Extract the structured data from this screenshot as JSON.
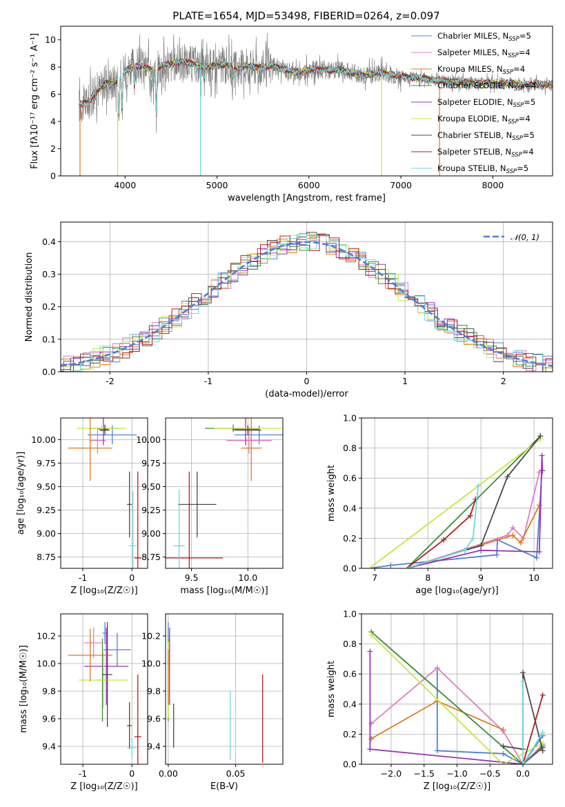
{
  "title": "PLATE=1654, MJD=53498, FIBERID=0264, z=0.097",
  "colors": {
    "blue": "#4f7fd6",
    "pink": "#e27cc0",
    "orange": "#de7a1e",
    "green": "#3b8a3b",
    "purple": "#9b30b8",
    "yellowgreen": "#c8e636",
    "darkgray": "#4a4a4a",
    "darkred": "#b51c1c",
    "cyan": "#72d8de",
    "data": "#808080"
  },
  "chart_data": [
    {
      "id": "spectrum",
      "type": "line",
      "xlabel": "wavelength [Angstrom, rest frame]",
      "ylabel": "Flux [fλ10⁻¹⁷ erg cm⁻² s⁻¹ A⁻¹]",
      "xlim": [
        3300,
        8650
      ],
      "ylim": [
        0,
        11
      ],
      "xticks": [
        4000,
        5000,
        6000,
        7000,
        8000
      ],
      "yticks": [
        0,
        2,
        4,
        6,
        8,
        10
      ],
      "legend_position": "top-right",
      "legend": [
        {
          "label": "Chabrier MILES, N",
          "sub": "SSP",
          "tail": "=5",
          "color": "blue"
        },
        {
          "label": "Salpeter MILES, N",
          "sub": "SSP",
          "tail": "=4",
          "color": "pink"
        },
        {
          "label": "Kroupa MILES, N",
          "sub": "SSP",
          "tail": "=4",
          "color": "orange"
        },
        {
          "label": "Chabrier ELODIE, N",
          "sub": "SSP",
          "tail": "=4",
          "color": "green"
        },
        {
          "label": "Salpeter ELODIE, N",
          "sub": "SSP",
          "tail": "=5",
          "color": "purple"
        },
        {
          "label": "Kroupa ELODIE, N",
          "sub": "SSP",
          "tail": "=4",
          "color": "yellowgreen"
        },
        {
          "label": "Chabrier STELIB, N",
          "sub": "SSP",
          "tail": "=5",
          "color": "darkgray"
        },
        {
          "label": "Salpeter STELIB, N",
          "sub": "SSP",
          "tail": "=4",
          "color": "darkred"
        },
        {
          "label": "Kroupa STELIB, N",
          "sub": "SSP",
          "tail": "=5",
          "color": "cyan"
        }
      ],
      "continuum": [
        [
          3500,
          5.2
        ],
        [
          3600,
          5.4
        ],
        [
          3700,
          6.3
        ],
        [
          3800,
          6.8
        ],
        [
          3900,
          7.0
        ],
        [
          4000,
          7.7
        ],
        [
          4100,
          8.1
        ],
        [
          4200,
          8.0
        ],
        [
          4300,
          7.8
        ],
        [
          4400,
          8.1
        ],
        [
          4500,
          8.2
        ],
        [
          4600,
          8.4
        ],
        [
          4700,
          8.3
        ],
        [
          4800,
          8.1
        ],
        [
          4900,
          8.0
        ],
        [
          5000,
          8.1
        ],
        [
          5100,
          8.2
        ],
        [
          5200,
          7.8
        ],
        [
          5300,
          8.1
        ],
        [
          5400,
          8.0
        ],
        [
          5500,
          8.0
        ],
        [
          5600,
          8.0
        ],
        [
          5700,
          7.9
        ],
        [
          5800,
          7.7
        ],
        [
          5900,
          7.6
        ],
        [
          6000,
          7.8
        ],
        [
          6200,
          7.8
        ],
        [
          6400,
          7.7
        ],
        [
          6600,
          7.4
        ],
        [
          6800,
          7.6
        ],
        [
          7000,
          7.3
        ],
        [
          7200,
          7.2
        ],
        [
          7400,
          7.0
        ],
        [
          7600,
          6.9
        ],
        [
          7800,
          6.8
        ],
        [
          8000,
          6.8
        ],
        [
          8200,
          6.8
        ],
        [
          8400,
          6.7
        ],
        [
          8600,
          6.7
        ]
      ],
      "absorption_lines": [
        [
          3933,
          4.3
        ],
        [
          3968,
          4.8
        ],
        [
          4102,
          6.6
        ],
        [
          4300,
          6.9
        ],
        [
          4340,
          4.4
        ],
        [
          4861,
          7.0
        ],
        [
          5175,
          7.2
        ],
        [
          5893,
          7.1
        ]
      ],
      "dropouts": [
        [
          3510,
          "orange"
        ],
        [
          3920,
          "yellowgreen"
        ],
        [
          4820,
          "cyan"
        ],
        [
          6790,
          "yellowgreen"
        ],
        [
          7420,
          "orange"
        ]
      ]
    },
    {
      "id": "residuals",
      "type": "histogram",
      "xlabel": "(data-model)/error",
      "ylabel": "Normed distribution",
      "xlim": [
        -2.5,
        2.5
      ],
      "ylim": [
        0,
        0.46
      ],
      "xticks": [
        -2,
        -1,
        0,
        1,
        2
      ],
      "yticks": [
        0.0,
        0.1,
        0.2,
        0.3,
        0.4
      ],
      "bin_width": 0.1,
      "reference": {
        "label": "𝒩(0, 1)",
        "mean": 0,
        "sigma": 1,
        "color": "blue",
        "style": "dashed"
      },
      "legend_position": "top-right"
    },
    {
      "id": "age_vs_Z",
      "type": "scatter",
      "xlabel": "Z [log₁₀(Z/Z☉)]",
      "ylabel": "age  [log₁₀(age/yr)]",
      "xlim": [
        -1.45,
        0.32
      ],
      "ylim": [
        8.63,
        10.23
      ],
      "xticks": [
        -1,
        0
      ],
      "yticks": [
        8.75,
        9.0,
        9.25,
        9.5,
        9.75,
        10.0
      ],
      "points": [
        {
          "x": -0.55,
          "y": 10.12,
          "xerr": 0.28,
          "yerr": 0.04,
          "color": "green"
        },
        {
          "x": -0.4,
          "y": 10.05,
          "xerr": 0.5,
          "yerr": 0.1,
          "color": "blue"
        },
        {
          "x": -0.7,
          "y": 9.99,
          "xerr": 0.17,
          "yerr": 0.14,
          "color": "pink"
        },
        {
          "x": -0.58,
          "y": 10.11,
          "xerr": 0.1,
          "yerr": 0.17,
          "color": "purple"
        },
        {
          "x": -0.62,
          "y": 10.12,
          "xerr": 0.5,
          "yerr": 0.04,
          "color": "yellowgreen"
        },
        {
          "x": -0.85,
          "y": 9.91,
          "xerr": 0.45,
          "yerr": 0.35,
          "color": "orange"
        },
        {
          "x": -0.55,
          "y": 10.1,
          "xerr": 0.1,
          "yerr": 0.05,
          "color": "darkgray"
        },
        {
          "x": -0.05,
          "y": 9.31,
          "xerr": 0.05,
          "yerr": 0.35,
          "color": "darkgray"
        },
        {
          "x": 0.12,
          "y": 8.74,
          "xerr": 0.07,
          "yerr": 0.92,
          "color": "darkred"
        },
        {
          "x": 0.02,
          "y": 8.87,
          "xerr": 0.08,
          "yerr": 0.58,
          "color": "cyan"
        }
      ]
    },
    {
      "id": "age_vs_mass",
      "type": "scatter",
      "xlabel": "mass [log₁₀(M/M☉)]",
      "ylabel": "",
      "xlim": [
        9.27,
        10.31
      ],
      "ylim": [
        8.63,
        10.23
      ],
      "xticks": [
        9.5,
        10.0
      ],
      "yticks": [
        8.75,
        9.0,
        9.25,
        9.5,
        9.75,
        10.0
      ],
      "points": [
        {
          "x": 9.87,
          "y": 10.12,
          "xerr": 0.25,
          "yerr": 0.04,
          "color": "green"
        },
        {
          "x": 10.1,
          "y": 10.05,
          "xerr": 0.22,
          "yerr": 0.1,
          "color": "blue"
        },
        {
          "x": 10.01,
          "y": 9.99,
          "xerr": 0.2,
          "yerr": 0.14,
          "color": "pink"
        },
        {
          "x": 9.98,
          "y": 10.11,
          "xerr": 0.12,
          "yerr": 0.17,
          "color": "purple"
        },
        {
          "x": 10.0,
          "y": 10.12,
          "xerr": 0.3,
          "yerr": 0.04,
          "color": "yellowgreen"
        },
        {
          "x": 10.03,
          "y": 9.91,
          "xerr": 0.09,
          "yerr": 0.35,
          "color": "orange"
        },
        {
          "x": 10.0,
          "y": 10.1,
          "xerr": 0.12,
          "yerr": 0.05,
          "color": "darkgray"
        },
        {
          "x": 9.55,
          "y": 9.31,
          "xerr": 0.17,
          "yerr": 0.35,
          "color": "darkgray"
        },
        {
          "x": 9.48,
          "y": 8.74,
          "xerr": 0.3,
          "yerr": 0.92,
          "color": "darkred"
        },
        {
          "x": 9.39,
          "y": 8.87,
          "xerr": 0.05,
          "yerr": 0.6,
          "color": "cyan"
        }
      ]
    },
    {
      "id": "mass_weight_vs_age",
      "type": "line",
      "xlabel": "age  [log₁₀(age/yr)]",
      "ylabel": "mass weight",
      "xlim": [
        6.75,
        10.35
      ],
      "ylim": [
        0,
        1.0
      ],
      "xticks": [
        7,
        8,
        9,
        10
      ],
      "yticks": [
        0.0,
        0.2,
        0.4,
        0.6,
        0.8,
        1.0
      ],
      "series": [
        {
          "color": "blue",
          "x": [
            6.9,
            7.3,
            9.3,
            9.31,
            10.05,
            10.15
          ],
          "y": [
            0.0,
            0.02,
            0.09,
            0.19,
            0.07,
            0.65
          ]
        },
        {
          "color": "pink",
          "x": [
            7.6,
            9.5,
            9.6,
            9.8,
            10.1
          ],
          "y": [
            0.0,
            0.22,
            0.27,
            0.2,
            0.64
          ]
        },
        {
          "color": "orange",
          "x": [
            7.6,
            9.6,
            9.75,
            10.1
          ],
          "y": [
            0.0,
            0.22,
            0.17,
            0.42
          ]
        },
        {
          "color": "purple",
          "x": [
            7.6,
            9.0,
            10.1,
            10.15,
            10.16
          ],
          "y": [
            0.0,
            0.12,
            0.11,
            0.75,
            0.65
          ]
        },
        {
          "color": "green",
          "x": [
            7.6,
            10.12
          ],
          "y": [
            0.0,
            0.88
          ]
        },
        {
          "color": "yellowgreen",
          "x": [
            6.9,
            10.12
          ],
          "y": [
            0.0,
            0.86
          ]
        },
        {
          "color": "darkgray",
          "x": [
            7.6,
            8.7,
            9.0,
            9.5,
            10.12
          ],
          "y": [
            0.0,
            0.12,
            0.15,
            0.61,
            0.88
          ]
        },
        {
          "color": "darkred",
          "x": [
            7.6,
            8.3,
            8.8,
            8.9
          ],
          "y": [
            0.0,
            0.19,
            0.35,
            0.46
          ]
        },
        {
          "color": "cyan",
          "x": [
            7.6,
            8.7,
            8.85,
            8.95
          ],
          "y": [
            0.0,
            0.12,
            0.2,
            0.55
          ]
        }
      ]
    },
    {
      "id": "mass_vs_Z",
      "type": "scatter",
      "xlabel": "Z [log₁₀(Z/Z☉)]",
      "ylabel": "mass [log₁₀(M/M☉)]",
      "xlim": [
        -1.45,
        0.32
      ],
      "ylim": [
        9.27,
        10.36
      ],
      "xticks": [
        -1,
        0
      ],
      "yticks": [
        9.4,
        9.6,
        9.8,
        10.0,
        10.2
      ],
      "points": [
        {
          "x": -0.55,
          "y": 10.22,
          "xerr": 0.05,
          "yerr": 0.08,
          "color": "blue"
        },
        {
          "x": -0.6,
          "y": 9.88,
          "xerr": 0.1,
          "yerr": 0.3,
          "color": "green"
        },
        {
          "x": -0.3,
          "y": 10.1,
          "xerr": 0.28,
          "yerr": 0.12,
          "color": "blue"
        },
        {
          "x": -0.78,
          "y": 10.15,
          "xerr": 0.2,
          "yerr": 0.11,
          "color": "pink"
        },
        {
          "x": -0.52,
          "y": 9.98,
          "xerr": 0.45,
          "yerr": 0.28,
          "color": "purple"
        },
        {
          "x": -0.58,
          "y": 9.88,
          "xerr": 0.5,
          "yerr": 0.2,
          "color": "yellowgreen"
        },
        {
          "x": -0.85,
          "y": 10.06,
          "xerr": 0.45,
          "yerr": 0.19,
          "color": "orange"
        },
        {
          "x": -0.5,
          "y": 9.92,
          "xerr": 0.1,
          "yerr": 0.38,
          "color": "darkgray"
        },
        {
          "x": -0.05,
          "y": 9.55,
          "xerr": 0.05,
          "yerr": 0.17,
          "color": "darkgray"
        },
        {
          "x": 0.12,
          "y": 9.47,
          "xerr": 0.07,
          "yerr": 0.45,
          "color": "darkred"
        },
        {
          "x": 0.0,
          "y": 9.39,
          "xerr": 0.1,
          "yerr": 0.07,
          "color": "cyan"
        }
      ]
    },
    {
      "id": "mass_vs_EBV",
      "type": "scatter",
      "xlabel": "E(B-V)",
      "ylabel": "",
      "xlim": [
        -0.002,
        0.085
      ],
      "ylim": [
        9.27,
        10.36
      ],
      "xticks": [
        0.0,
        0.05
      ],
      "yticks": [
        9.4,
        9.6,
        9.8,
        10.0,
        10.2
      ],
      "points": [
        {
          "x": 0.0,
          "y": 10.22,
          "yerr": 0.08,
          "color": "blue"
        },
        {
          "x": 0.0,
          "y": 9.88,
          "yerr": 0.3,
          "color": "green"
        },
        {
          "x": 0.001,
          "y": 10.1,
          "yerr": 0.12,
          "color": "pink"
        },
        {
          "x": 0.001,
          "y": 9.98,
          "yerr": 0.28,
          "color": "purple"
        },
        {
          "x": 0.0,
          "y": 9.88,
          "yerr": 0.28,
          "color": "yellowgreen"
        },
        {
          "x": 0.0,
          "y": 9.9,
          "yerr": 0.2,
          "color": "orange"
        },
        {
          "x": 0.004,
          "y": 9.55,
          "yerr": 0.16,
          "color": "darkgray"
        },
        {
          "x": 0.07,
          "y": 9.6,
          "yerr": 0.32,
          "color": "darkred"
        },
        {
          "x": 0.046,
          "y": 9.55,
          "yerr": 0.25,
          "color": "cyan"
        }
      ]
    },
    {
      "id": "mass_weight_vs_Z",
      "type": "line",
      "xlabel": "Z [log₁₀(Z/Z☉)]",
      "ylabel": "mass weight",
      "xlim": [
        -2.45,
        0.45
      ],
      "ylim": [
        0,
        1.0
      ],
      "xticks": [
        -2.0,
        -1.5,
        -1.0,
        -0.5,
        0.0
      ],
      "yticks": [
        0.0,
        0.2,
        0.4,
        0.6,
        0.8,
        1.0
      ],
      "series": [
        {
          "color": "blue",
          "x": [
            -1.3,
            -1.3,
            -0.3,
            0.0,
            0.3
          ],
          "y": [
            0.64,
            0.09,
            0.07,
            0.0,
            0.19
          ]
        },
        {
          "color": "pink",
          "x": [
            -2.3,
            -1.3,
            -0.3,
            0.0,
            0.3
          ],
          "y": [
            0.27,
            0.64,
            0.22,
            0.0,
            0.13
          ]
        },
        {
          "color": "orange",
          "x": [
            -2.3,
            -1.3,
            -0.3
          ],
          "y": [
            0.17,
            0.42,
            0.23
          ]
        },
        {
          "color": "purple",
          "x": [
            -2.32,
            -2.32,
            0.0,
            0.3
          ],
          "y": [
            0.75,
            0.1,
            0.0,
            0.11
          ]
        },
        {
          "color": "green",
          "x": [
            -2.3,
            0.0,
            0.3
          ],
          "y": [
            0.88,
            0.0,
            0.12
          ]
        },
        {
          "color": "yellowgreen",
          "x": [
            -2.3,
            -0.3,
            0.3
          ],
          "y": [
            0.86,
            0.0,
            0.14
          ]
        },
        {
          "color": "darkgray",
          "x": [
            -0.3,
            0.0,
            0.0,
            0.3
          ],
          "y": [
            0.12,
            0.1,
            0.61,
            0.09
          ]
        },
        {
          "color": "darkred",
          "x": [
            0.0,
            0.3
          ],
          "y": [
            0.0,
            0.46
          ]
        },
        {
          "color": "cyan",
          "x": [
            0.0,
            0.0,
            0.3
          ],
          "y": [
            0.55,
            0.0,
            0.21
          ]
        }
      ]
    }
  ]
}
